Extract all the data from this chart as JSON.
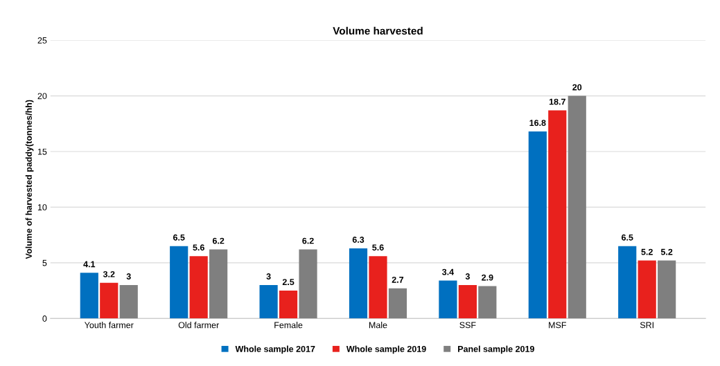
{
  "chart_data": {
    "type": "bar",
    "title": "Volume harvested",
    "ylabel": "Volume of harvested paddy(tonnes/hh)",
    "categories": [
      "Youth farmer",
      "Old farmer",
      "Female",
      "Male",
      "SSF",
      "MSF",
      "SRI"
    ],
    "series": [
      {
        "name": "Whole sample 2017",
        "color": "#0070c0",
        "values": [
          4.1,
          6.5,
          3,
          6.3,
          3.4,
          16.8,
          6.5
        ]
      },
      {
        "name": "Whole sample 2019",
        "color": "#e8211d",
        "values": [
          3.2,
          5.6,
          2.5,
          5.6,
          3,
          18.7,
          5.2
        ]
      },
      {
        "name": "Panel sample 2019",
        "color": "#7f7f7f",
        "values": [
          3,
          6.2,
          6.2,
          2.7,
          2.9,
          20,
          5.2
        ]
      }
    ],
    "ylim": [
      0,
      25
    ],
    "yticks": [
      0,
      5,
      10,
      15,
      20,
      25
    ],
    "grid": "y",
    "legend": "bottom",
    "data_labels": true
  }
}
